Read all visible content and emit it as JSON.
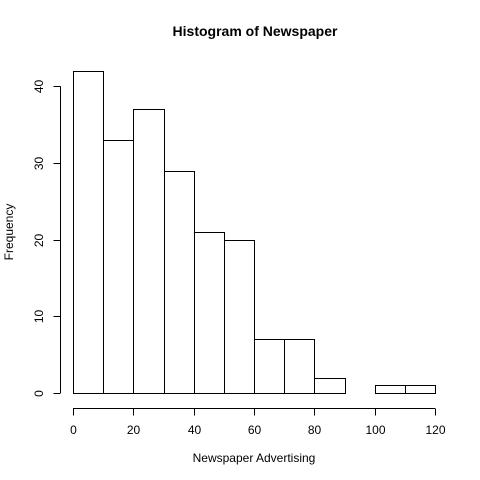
{
  "chart_data": {
    "type": "bar",
    "title": "Histogram of Newspaper",
    "xlabel": "Newspaper Advertising",
    "ylabel": "Frequency",
    "bin_edges": [
      0,
      10,
      20,
      30,
      40,
      50,
      60,
      70,
      80,
      90,
      100,
      110,
      120
    ],
    "values": [
      42,
      33,
      37,
      29,
      21,
      20,
      7,
      7,
      2,
      0,
      1,
      1
    ],
    "xlim": [
      0,
      120
    ],
    "ylim": [
      0,
      42
    ],
    "x_ticks": [
      0,
      20,
      40,
      60,
      80,
      100,
      120
    ],
    "y_ticks": [
      0,
      10,
      20,
      30,
      40
    ],
    "grid": false,
    "bar_fill": "#ffffff",
    "bar_stroke": "#000000"
  }
}
